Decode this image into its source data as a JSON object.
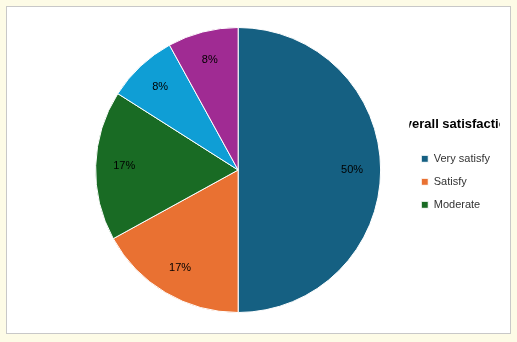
{
  "chart_data": {
    "type": "pie",
    "title": "Overall satisfaction",
    "categories": [
      "Very satisfy",
      "Satisfy",
      "Moderate",
      null,
      null
    ],
    "values": [
      50,
      17,
      17,
      8,
      8
    ],
    "value_labels": [
      "50%",
      "17%",
      "17%",
      "8%",
      "8%"
    ],
    "colors": [
      "#156082",
      "#e97132",
      "#196b24",
      "#0f9ed5",
      "#a02b93"
    ],
    "legend": "right",
    "data_labels": true
  }
}
